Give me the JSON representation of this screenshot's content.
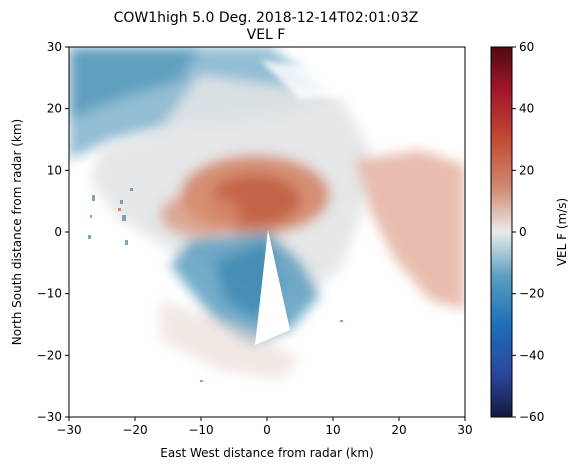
{
  "chart_data": {
    "type": "heatmap",
    "title": "COW1high 5.0 Deg. 2018-12-14T02:01:03Z",
    "subtitle": "VEL F",
    "xlabel": "East West distance from radar (km)",
    "ylabel": "North South distance from radar (km)",
    "xlim": [
      -30,
      30
    ],
    "ylim": [
      -30,
      30
    ],
    "xticks": [
      "−30",
      "−20",
      "−10",
      "0",
      "10",
      "20",
      "30"
    ],
    "yticks": [
      "−30",
      "−20",
      "−10",
      "0",
      "10",
      "20",
      "30"
    ],
    "colorbar": {
      "label": "VEL F (m/s)",
      "range": [
        -60,
        60
      ],
      "ticks": [
        "−60",
        "−40",
        "−20",
        "0",
        "20",
        "40",
        "60"
      ]
    },
    "colors": {
      "negative_low": "#2f87b0",
      "neutral": "#e8e8e8",
      "positive_low": "#c8624a",
      "extreme_negative": "#141a3c",
      "extreme_positive": "#4e0b14"
    },
    "regions": [
      {
        "name": "outbound core",
        "center_km": [
          -2,
          5
        ],
        "approx_velocity_ms": 20
      },
      {
        "name": "inbound core",
        "center_km": [
          -3,
          -10
        ],
        "approx_velocity_ms": -20
      },
      {
        "name": "northwest inbound",
        "center_km": [
          -20,
          25
        ],
        "approx_velocity_ms": -12
      },
      {
        "name": "east outbound",
        "center_km": [
          23,
          3
        ],
        "approx_velocity_ms": 10
      }
    ],
    "grid": false,
    "legend": "colorbar-right"
  }
}
